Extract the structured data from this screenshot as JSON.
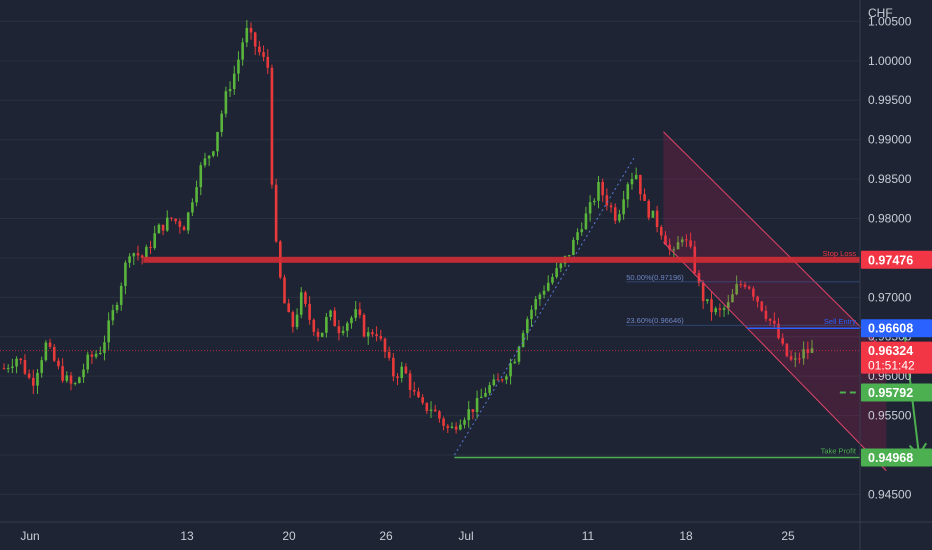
{
  "chart_data": {
    "type": "candlestick",
    "currency_label": "CHF",
    "ylim": [
      0.942,
      1.007
    ],
    "y_ticks": [
      "1.00500",
      "1.00000",
      "0.99500",
      "0.99000",
      "0.98500",
      "0.98000",
      "0.97500",
      "0.97000",
      "0.96500",
      "0.96000",
      "0.95500",
      "0.95000",
      "0.94500"
    ],
    "x_ticks": [
      {
        "label": "Jun",
        "x": 0
      },
      {
        "label": "13",
        "x": 52
      },
      {
        "label": "20",
        "x": 69
      },
      {
        "label": "26",
        "x": 89
      },
      {
        "label": "Jul",
        "x": 110
      },
      {
        "label": "11",
        "x": 137
      },
      {
        "label": "18",
        "x": 164
      },
      {
        "label": "25",
        "x": 191
      }
    ],
    "price_anchors": [
      [
        0,
        0.961
      ],
      [
        3,
        0.9625
      ],
      [
        6,
        0.959
      ],
      [
        9,
        0.964
      ],
      [
        12,
        0.9605
      ],
      [
        15,
        0.9585
      ],
      [
        18,
        0.962
      ],
      [
        21,
        0.9635
      ],
      [
        24,
        0.969
      ],
      [
        27,
        0.976
      ],
      [
        30,
        0.975
      ],
      [
        33,
        0.9785
      ],
      [
        36,
        0.98
      ],
      [
        39,
        0.979
      ],
      [
        42,
        0.986
      ],
      [
        45,
        0.989
      ],
      [
        48,
        0.996
      ],
      [
        50,
        0.999
      ],
      [
        52,
        1.004
      ],
      [
        55,
        1.001
      ],
      [
        57,
        0.999
      ],
      [
        58,
        0.979
      ],
      [
        60,
        0.97
      ],
      [
        62,
        0.966
      ],
      [
        64,
        0.97
      ],
      [
        66,
        0.967
      ],
      [
        68,
        0.965
      ],
      [
        70,
        0.968
      ],
      [
        72,
        0.966
      ],
      [
        74,
        0.967
      ],
      [
        76,
        0.968
      ],
      [
        78,
        0.965
      ],
      [
        80,
        0.966
      ],
      [
        82,
        0.963
      ],
      [
        84,
        0.96
      ],
      [
        86,
        0.961
      ],
      [
        88,
        0.958
      ],
      [
        90,
        0.956
      ],
      [
        92,
        0.956
      ],
      [
        94,
        0.9545
      ],
      [
        96,
        0.953
      ],
      [
        98,
        0.9545
      ],
      [
        100,
        0.9555
      ],
      [
        102,
        0.9565
      ],
      [
        104,
        0.9585
      ],
      [
        106,
        0.959
      ],
      [
        108,
        0.9605
      ],
      [
        110,
        0.9625
      ],
      [
        112,
        0.9665
      ],
      [
        114,
        0.969
      ],
      [
        116,
        0.971
      ],
      [
        118,
        0.9725
      ],
      [
        120,
        0.974
      ],
      [
        122,
        0.976
      ],
      [
        124,
        0.979
      ],
      [
        126,
        0.981
      ],
      [
        128,
        0.984
      ],
      [
        130,
        0.982
      ],
      [
        132,
        0.98
      ],
      [
        134,
        0.9845
      ],
      [
        136,
        0.986
      ],
      [
        138,
        0.9815
      ],
      [
        140,
        0.98
      ],
      [
        142,
        0.978
      ],
      [
        144,
        0.975
      ],
      [
        146,
        0.978
      ],
      [
        148,
        0.9755
      ],
      [
        150,
        0.9705
      ],
      [
        152,
        0.9685
      ],
      [
        154,
        0.968
      ],
      [
        156,
        0.969
      ],
      [
        158,
        0.9715
      ],
      [
        160,
        0.972
      ],
      [
        162,
        0.97
      ],
      [
        164,
        0.968
      ],
      [
        166,
        0.966
      ],
      [
        168,
        0.963
      ],
      [
        170,
        0.9615
      ],
      [
        172,
        0.963
      ],
      [
        174,
        0.9632
      ]
    ],
    "series": [
      {
        "values": [
          {
            "bars": [
              0,
              6
            ],
            "type": "bullish"
          }
        ]
      }
    ],
    "levels": [
      {
        "value": 0.97476,
        "label": "Stop Loss",
        "tag": "0.97476",
        "color": "#f23645"
      },
      {
        "value": 0.96608,
        "label": "Sell Entry",
        "tag": "0.96608",
        "color": "#2962ff"
      },
      {
        "value": 0.95792,
        "label": "",
        "tag": "0.95792",
        "color": "#4caf50"
      },
      {
        "value": 0.94968,
        "label": "Take Profit",
        "tag": "0.94968",
        "color": "#4caf50"
      }
    ],
    "current": {
      "value": 0.96324,
      "tag": "0.96324",
      "timer": "01:51:42",
      "color": "#f23645"
    },
    "fib_levels": [
      {
        "label": "50.00%(0.97196)",
        "value": 0.97196
      },
      {
        "label": "23.60%(0.96646)",
        "value": 0.96646
      }
    ],
    "channel": {
      "upper": [
        [
          142,
          0.991
        ],
        [
          190,
          0.963
        ]
      ],
      "lower": [
        [
          142,
          0.977
        ],
        [
          190,
          0.948
        ]
      ]
    }
  }
}
